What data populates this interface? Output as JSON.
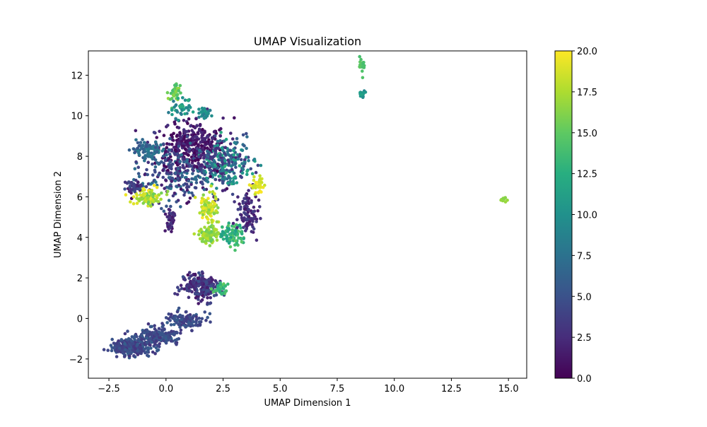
{
  "chart_data": {
    "type": "scatter",
    "title": "UMAP Visualization",
    "xlabel": "UMAP Dimension 1",
    "ylabel": "UMAP Dimension 2",
    "xlim": [
      -3.4,
      15.8
    ],
    "ylim": [
      -2.95,
      13.2
    ],
    "xticks": [
      -2.5,
      0.0,
      2.5,
      5.0,
      7.5,
      10.0,
      12.5,
      15.0
    ],
    "xtick_labels": [
      "−2.5",
      "0.0",
      "2.5",
      "5.0",
      "7.5",
      "10.0",
      "12.5",
      "15.0"
    ],
    "yticks": [
      -2,
      0,
      2,
      4,
      6,
      8,
      10,
      12
    ],
    "ytick_labels": [
      "−2",
      "0",
      "2",
      "4",
      "6",
      "8",
      "10",
      "12"
    ],
    "grid": false,
    "colormap": "viridis",
    "colorbar": {
      "range": [
        0.0,
        20.0
      ],
      "ticks": [
        0.0,
        2.5,
        5.0,
        7.5,
        10.0,
        12.5,
        15.0,
        17.5,
        20.0
      ],
      "tick_labels": [
        "0.0",
        "2.5",
        "5.0",
        "7.5",
        "10.0",
        "12.5",
        "15.0",
        "17.5",
        "20.0"
      ]
    },
    "clusters": [
      {
        "center": [
          -1.5,
          -1.4
        ],
        "spread": [
          0.7,
          0.35
        ],
        "count": 260,
        "value_range": [
          3,
          6
        ]
      },
      {
        "center": [
          -0.3,
          -0.9
        ],
        "spread": [
          0.8,
          0.3
        ],
        "count": 180,
        "value_range": [
          3,
          6
        ]
      },
      {
        "center": [
          0.8,
          -0.1
        ],
        "spread": [
          0.6,
          0.35
        ],
        "count": 120,
        "value_range": [
          3,
          6
        ]
      },
      {
        "center": [
          1.5,
          1.6
        ],
        "spread": [
          0.75,
          0.55
        ],
        "count": 220,
        "value_range": [
          1,
          5
        ]
      },
      {
        "center": [
          2.4,
          1.5
        ],
        "spread": [
          0.25,
          0.25
        ],
        "count": 40,
        "value_range": [
          12,
          15
        ]
      },
      {
        "center": [
          1.2,
          8.6
        ],
        "spread": [
          1.2,
          0.9
        ],
        "count": 320,
        "value_range": [
          0,
          3
        ]
      },
      {
        "center": [
          2.6,
          7.6
        ],
        "spread": [
          0.9,
          1.0
        ],
        "count": 260,
        "value_range": [
          2,
          13
        ]
      },
      {
        "center": [
          0.5,
          7.2
        ],
        "spread": [
          1.5,
          1.2
        ],
        "count": 300,
        "value_range": [
          0,
          8
        ]
      },
      {
        "center": [
          -0.8,
          8.3
        ],
        "spread": [
          0.6,
          0.4
        ],
        "count": 90,
        "value_range": [
          5,
          9
        ]
      },
      {
        "center": [
          -0.8,
          6.0
        ],
        "spread": [
          0.5,
          0.35
        ],
        "count": 90,
        "value_range": [
          15,
          20
        ]
      },
      {
        "center": [
          1.8,
          5.4
        ],
        "spread": [
          0.4,
          0.6
        ],
        "count": 90,
        "value_range": [
          16,
          20
        ]
      },
      {
        "center": [
          1.9,
          4.1
        ],
        "spread": [
          0.45,
          0.35
        ],
        "count": 90,
        "value_range": [
          15,
          18
        ]
      },
      {
        "center": [
          2.9,
          4.1
        ],
        "spread": [
          0.4,
          0.5
        ],
        "count": 90,
        "value_range": [
          11,
          15
        ]
      },
      {
        "center": [
          3.6,
          5.2
        ],
        "spread": [
          0.35,
          1.0
        ],
        "count": 90,
        "value_range": [
          1,
          4
        ]
      },
      {
        "center": [
          4.0,
          6.6
        ],
        "spread": [
          0.2,
          0.3
        ],
        "count": 40,
        "value_range": [
          18,
          20
        ]
      },
      {
        "center": [
          0.4,
          11.1
        ],
        "spread": [
          0.2,
          0.4
        ],
        "count": 40,
        "value_range": [
          14,
          17
        ]
      },
      {
        "center": [
          0.7,
          10.4
        ],
        "spread": [
          0.4,
          0.4
        ],
        "count": 40,
        "value_range": [
          8,
          13
        ]
      },
      {
        "center": [
          1.7,
          10.1
        ],
        "spread": [
          0.25,
          0.2
        ],
        "count": 30,
        "value_range": [
          8,
          11
        ]
      },
      {
        "center": [
          -1.4,
          6.5
        ],
        "spread": [
          0.3,
          0.25
        ],
        "count": 40,
        "value_range": [
          1,
          5
        ]
      },
      {
        "center": [
          0.2,
          4.8
        ],
        "spread": [
          0.15,
          0.5
        ],
        "count": 40,
        "value_range": [
          1,
          4
        ]
      },
      {
        "center": [
          8.6,
          12.5
        ],
        "spread": [
          0.1,
          0.3
        ],
        "count": 20,
        "value_range": [
          14,
          15
        ]
      },
      {
        "center": [
          8.6,
          11.1
        ],
        "spread": [
          0.15,
          0.12
        ],
        "count": 14,
        "value_range": [
          9,
          12
        ]
      },
      {
        "center": [
          14.8,
          5.9
        ],
        "spread": [
          0.1,
          0.1
        ],
        "count": 12,
        "value_range": [
          16,
          17
        ]
      }
    ]
  }
}
